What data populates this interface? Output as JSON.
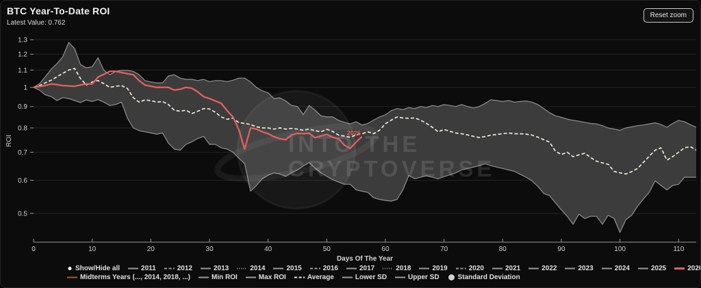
{
  "panel": {
    "title": "BTC Year-To-Date ROI",
    "subtitle": "Latest Value: 0.762",
    "reset_zoom_label": "Reset zoom"
  },
  "watermark": {
    "line1": "INTO THE",
    "line2": "CRYPTOVERSE"
  },
  "colors": {
    "background": "#0c0c0c",
    "band_fill": "#3c3c3c",
    "band_edge": "#909090",
    "average": "#efe9dd",
    "year2026": "#e0625f",
    "midterms": "#a85b32",
    "grid": "#232323",
    "axis": "#9a9a9a",
    "tick_text": "#cfcfcf",
    "legend_text": "#e0e0e0",
    "legend_line": "#9a9a9a",
    "std_dot": "#d0d0d0"
  },
  "axes": {
    "x": {
      "title": "Days Of The Year",
      "tick_values": [
        0,
        10,
        20,
        30,
        40,
        50,
        60,
        70,
        80,
        90,
        100,
        110
      ],
      "tick_labels": [
        "0",
        "10",
        "20",
        "30",
        "40",
        "50",
        "60",
        "70",
        "80",
        "90",
        "100",
        "110"
      ],
      "max_day": 113
    },
    "y": {
      "title": "ROI",
      "scale": "log",
      "tick_values": [
        0.5,
        0.6,
        0.7,
        0.8,
        0.9,
        1,
        1.1,
        1.2,
        1.3
      ],
      "tick_labels": [
        "0.5",
        "0.6",
        "0.7",
        "0.8",
        "0.9",
        "1",
        "1.1",
        "1.2",
        "1.3"
      ]
    }
  },
  "legend": {
    "row1": [
      {
        "label": "Show/Hide all",
        "swatch": "bullet"
      },
      {
        "label": "2011",
        "swatch": "line-solid"
      },
      {
        "label": "2012",
        "swatch": "line-dash"
      },
      {
        "label": "2013",
        "swatch": "line-solid"
      },
      {
        "label": "2014",
        "swatch": "line-dot"
      },
      {
        "label": "2015",
        "swatch": "line-solid"
      },
      {
        "label": "2016",
        "swatch": "line-dash"
      },
      {
        "label": "2017",
        "swatch": "line-solid"
      },
      {
        "label": "2018",
        "swatch": "line-dot"
      },
      {
        "label": "2019",
        "swatch": "line-solid"
      },
      {
        "label": "2020",
        "swatch": "line-dash"
      },
      {
        "label": "2021",
        "swatch": "line-solid"
      },
      {
        "label": "2022",
        "swatch": "line-solid"
      },
      {
        "label": "2023",
        "swatch": "line-solid"
      },
      {
        "label": "2024",
        "swatch": "line-solid"
      },
      {
        "label": "2025",
        "swatch": "line-solid"
      },
      {
        "label": "2026",
        "swatch": "line-red"
      }
    ],
    "row2": [
      {
        "label": "Midterms Years (..., 2014, 2018, ...)",
        "swatch": "line-orange"
      },
      {
        "label": "Min ROI",
        "swatch": "line-solid"
      },
      {
        "label": "Max ROI",
        "swatch": "line-solid"
      },
      {
        "label": "Average",
        "swatch": "line-dash-white"
      },
      {
        "label": "Lower SD",
        "swatch": "line-solid"
      },
      {
        "label": "Upper SD",
        "swatch": "line-solid"
      },
      {
        "label": "Standard Deviation",
        "swatch": "circle"
      }
    ]
  },
  "chart_data": {
    "type": "line",
    "title": "BTC Year-To-Date ROI",
    "xlabel": "Days Of The Year",
    "ylabel": "ROI",
    "x_unit": "day index = position in values array",
    "x_range": [
      0,
      113
    ],
    "y_scale": "log",
    "ylim": [
      0.45,
      1.31
    ],
    "grid": "horizontal",
    "legend_position": "bottom",
    "latest_value": 0.762,
    "annotations": [
      {
        "text": "2026",
        "day": 55.2,
        "roi": 0.778,
        "color": "#e0625f"
      }
    ],
    "band": {
      "name": "Standard Deviation",
      "upper_series": "Upper SD",
      "lower_series": "Lower SD",
      "fill": "#3c3c3c"
    },
    "series": [
      {
        "name": "Upper SD",
        "style": "solid",
        "color": "#909090",
        "width": 1.2,
        "values": [
          1.0,
          1.02,
          1.06,
          1.105,
          1.14,
          1.185,
          1.28,
          1.238,
          1.134,
          1.113,
          1.12,
          1.177,
          1.098,
          1.072,
          1.092,
          1.098,
          1.098,
          1.092,
          1.072,
          1.038,
          1.03,
          1.025,
          1.025,
          1.065,
          1.072,
          1.052,
          1.045,
          1.045,
          1.038,
          1.045,
          1.032,
          1.038,
          1.038,
          1.032,
          1.04,
          1.052,
          1.052,
          1.03,
          1.0,
          0.981,
          0.97,
          0.94,
          0.944,
          0.928,
          0.905,
          0.9,
          0.861,
          0.905,
          0.882,
          0.855,
          0.85,
          0.85,
          0.834,
          0.825,
          0.818,
          0.828,
          0.813,
          0.82,
          0.835,
          0.85,
          0.86,
          0.88,
          0.89,
          0.885,
          0.895,
          0.89,
          0.9,
          0.895,
          0.905,
          0.9,
          0.91,
          0.905,
          0.9,
          0.91,
          0.9,
          0.893,
          0.9,
          0.915,
          0.934,
          0.93,
          0.925,
          0.93,
          0.922,
          0.925,
          0.928,
          0.922,
          0.91,
          0.89,
          0.87,
          0.855,
          0.848,
          0.84,
          0.834,
          0.83,
          0.825,
          0.82,
          0.818,
          0.81,
          0.8,
          0.795,
          0.79,
          0.8,
          0.805,
          0.81,
          0.813,
          0.818,
          0.823,
          0.815,
          0.803,
          0.82,
          0.834,
          0.828,
          0.815,
          0.803
        ]
      },
      {
        "name": "Lower SD",
        "style": "solid",
        "color": "#909090",
        "width": 1.2,
        "values": [
          1.0,
          0.985,
          0.96,
          0.95,
          0.93,
          0.945,
          0.94,
          0.93,
          0.92,
          0.933,
          0.925,
          0.935,
          0.922,
          0.905,
          0.91,
          0.922,
          0.845,
          0.8,
          0.788,
          0.783,
          0.778,
          0.773,
          0.778,
          0.736,
          0.712,
          0.708,
          0.731,
          0.741,
          0.755,
          0.764,
          0.731,
          0.731,
          0.717,
          0.712,
          0.7,
          0.678,
          0.657,
          0.565,
          0.583,
          0.605,
          0.617,
          0.625,
          0.621,
          0.613,
          0.625,
          0.635,
          0.649,
          0.661,
          0.641,
          0.625,
          0.613,
          0.602,
          0.594,
          0.587,
          0.587,
          0.569,
          0.565,
          0.561,
          0.545,
          0.54,
          0.537,
          0.535,
          0.54,
          0.57,
          0.616,
          0.605,
          0.61,
          0.615,
          0.61,
          0.605,
          0.612,
          0.618,
          0.625,
          0.635,
          0.64,
          0.645,
          0.65,
          0.657,
          0.65,
          0.645,
          0.64,
          0.635,
          0.63,
          0.62,
          0.61,
          0.598,
          0.58,
          0.558,
          0.551,
          0.53,
          0.51,
          0.492,
          0.471,
          0.498,
          0.486,
          0.492,
          0.492,
          0.471,
          0.495,
          0.486,
          0.45,
          0.483,
          0.495,
          0.52,
          0.541,
          0.562,
          0.598,
          0.583,
          0.569,
          0.583,
          0.587,
          0.61,
          0.61,
          0.61
        ]
      },
      {
        "name": "Average",
        "style": "dashed",
        "color": "#efe9dd",
        "width": 1.7,
        "values": [
          1.0,
          1.01,
          1.025,
          1.04,
          1.06,
          1.08,
          1.1,
          1.11,
          1.05,
          1.013,
          1.03,
          1.038,
          1.02,
          1.0,
          1.006,
          1.01,
          0.994,
          0.945,
          0.922,
          0.933,
          0.93,
          0.922,
          0.925,
          0.91,
          0.882,
          0.877,
          0.882,
          0.866,
          0.877,
          0.89,
          0.888,
          0.872,
          0.85,
          0.839,
          0.845,
          0.824,
          0.82,
          0.815,
          0.805,
          0.8,
          0.8,
          0.795,
          0.8,
          0.795,
          0.798,
          0.795,
          0.79,
          0.795,
          0.788,
          0.783,
          0.794,
          0.785,
          0.769,
          0.765,
          0.76,
          0.77,
          0.775,
          0.783,
          0.775,
          0.79,
          0.819,
          0.835,
          0.85,
          0.845,
          0.844,
          0.845,
          0.835,
          0.82,
          0.803,
          0.783,
          0.793,
          0.785,
          0.778,
          0.775,
          0.77,
          0.764,
          0.759,
          0.763,
          0.769,
          0.772,
          0.775,
          0.778,
          0.775,
          0.775,
          0.773,
          0.769,
          0.76,
          0.75,
          0.74,
          0.704,
          0.691,
          0.7,
          0.683,
          0.69,
          0.696,
          0.68,
          0.666,
          0.66,
          0.655,
          0.63,
          0.625,
          0.621,
          0.629,
          0.64,
          0.662,
          0.685,
          0.708,
          0.717,
          0.67,
          0.683,
          0.7,
          0.717,
          0.722,
          0.708
        ]
      },
      {
        "name": "2026",
        "style": "solid",
        "color": "#e0625f",
        "width": 2.3,
        "latest_value": 0.762,
        "values": [
          1.0,
          1.005,
          1.01,
          1.019,
          1.015,
          1.01,
          1.008,
          1.006,
          1.013,
          1.019,
          1.019,
          1.058,
          1.075,
          1.092,
          1.092,
          1.085,
          1.078,
          1.072,
          1.038,
          1.013,
          1.006,
          1.0,
          1.0,
          1.0,
          0.985,
          0.99,
          1.0,
          0.995,
          0.975,
          0.95,
          0.94,
          0.928,
          0.916,
          0.88,
          0.85,
          0.793,
          0.712,
          0.8,
          0.795,
          0.783,
          0.775,
          0.762,
          0.754,
          0.75,
          0.77,
          0.777,
          0.775,
          0.777,
          0.758,
          0.766,
          0.772,
          0.76,
          0.754,
          0.728,
          0.715,
          0.74,
          0.762
        ]
      }
    ]
  }
}
